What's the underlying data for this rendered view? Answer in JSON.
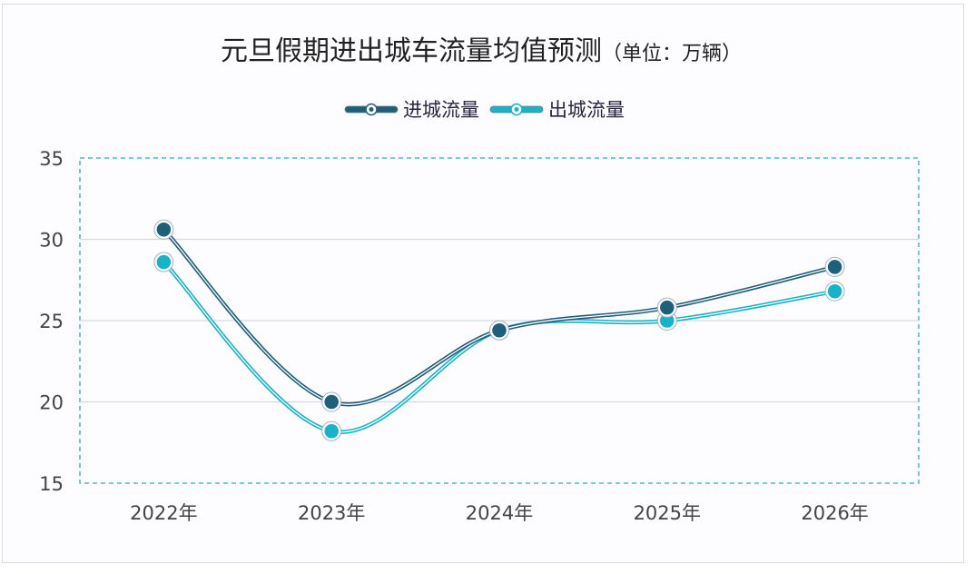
{
  "chart_data": {
    "type": "line",
    "title": "元旦假期进出城车流量均值预测",
    "title_unit": "（单位：万辆）",
    "categories": [
      "2022年",
      "2023年",
      "2024年",
      "2025年",
      "2026年"
    ],
    "series": [
      {
        "name": "进城流量",
        "values": [
          30.6,
          20.0,
          24.4,
          25.8,
          28.3
        ],
        "color": "#1e5f7a"
      },
      {
        "name": "出城流量",
        "values": [
          28.6,
          18.2,
          24.4,
          25.0,
          26.8
        ],
        "color": "#17b3c8"
      }
    ],
    "yticks": [
      15,
      20,
      25,
      30,
      35
    ],
    "ylim": [
      15,
      35
    ],
    "grid": true,
    "legend_placement": "top-center",
    "smooth": true
  }
}
